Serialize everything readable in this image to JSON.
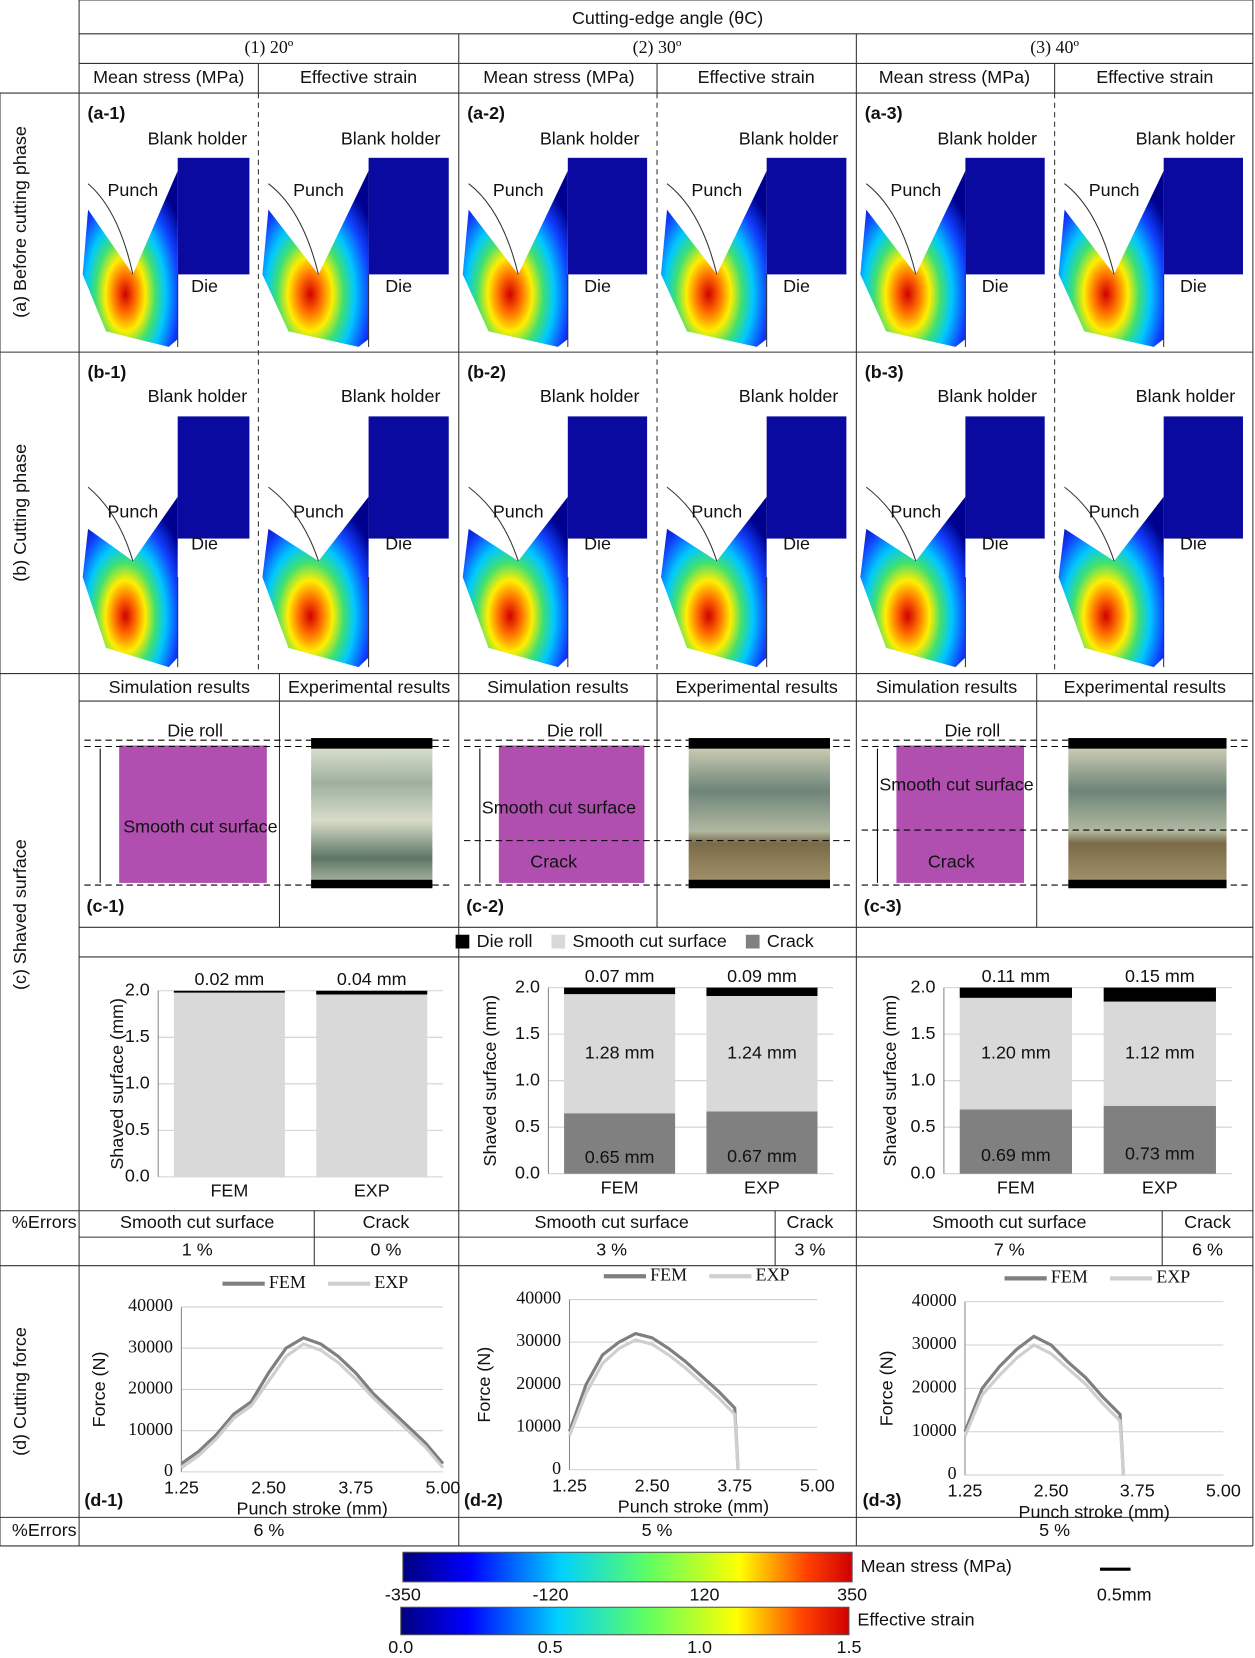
{
  "header": {
    "title": "Cutting-edge angle (θC)",
    "columns": [
      "(1) 20º",
      "(2) 30º",
      "(3) 40º"
    ],
    "subheaders": [
      "Mean stress (MPa)",
      "Effective strain"
    ]
  },
  "row_labels": [
    "(a) Before cutting phase",
    "(b) Cutting phase",
    "(c) Shaved surface",
    "(d) Cutting force"
  ],
  "error_label": "%Errors",
  "panels": [
    "(a-1)",
    "(a-2)",
    "(a-3)",
    "(b-1)",
    "(b-2)",
    "(b-3)"
  ],
  "part_labels": {
    "blank_holder": "Blank holder",
    "punch": "Punch",
    "die": "Die"
  },
  "shaved_surface": {
    "headers": [
      "Simulation results",
      "Experimental results"
    ],
    "labels": {
      "die_roll": "Die roll",
      "smooth": "Smooth cut surface",
      "crack": "Crack"
    },
    "panel_ids": [
      "(c-1)",
      "(c-2)",
      "(c-3)"
    ]
  },
  "errors": [
    {
      "headers": [
        "Smooth cut surface",
        "Crack"
      ],
      "values": [
        "1 %",
        "0 %"
      ]
    },
    {
      "headers": [
        "Smooth cut surface",
        "Crack"
      ],
      "values": [
        "3 %",
        "3 %"
      ]
    },
    {
      "headers": [
        "Smooth cut surface",
        "Crack"
      ],
      "values": [
        "7 %",
        "6 %"
      ]
    }
  ],
  "force_errors": [
    "6 %",
    "5 %",
    "5 %"
  ],
  "colorbars": [
    {
      "label": "Mean stress (MPa)",
      "lim": [
        -350,
        350
      ],
      "ticks": [
        -350,
        -120,
        120,
        350
      ]
    },
    {
      "label": "Effective strain",
      "lim": [
        0,
        1.5
      ],
      "ticks": [
        {
          "value": 0,
          "label": "0.0"
        },
        {
          "value": 0.5,
          "label": "0.5"
        },
        {
          "value": 1,
          "label": "1.0"
        },
        {
          "value": 1.5,
          "label": "1.5"
        }
      ]
    }
  ],
  "scale_bar": "0.5mm",
  "chart_data": [
    {
      "type": "bar",
      "stacked": true,
      "ylabel": "Shaved surface (mm)",
      "categories": [
        "FEM",
        "EXP"
      ],
      "series": [
        {
          "name": "Die roll",
          "color": "#000000",
          "values": [
            0.02,
            0.04
          ],
          "value_labels": [
            "0.02 mm",
            "0.04 mm"
          ]
        },
        {
          "name": "Smooth cut surface",
          "color": "#d9d9d9",
          "values": [
            1.98,
            1.96
          ]
        },
        {
          "name": "Crack",
          "color": "#808080",
          "values": [
            0,
            0
          ]
        }
      ],
      "ylim": [
        0,
        2
      ],
      "yticks": [
        {
          "value": 0,
          "label": "0.0"
        },
        {
          "value": 0.5,
          "label": "0.5"
        },
        {
          "value": 1,
          "label": "1.0"
        },
        {
          "value": 1.5,
          "label": "1.5"
        },
        {
          "value": 2,
          "label": "2.0"
        }
      ],
      "grid": true
    },
    {
      "type": "bar",
      "stacked": true,
      "ylabel": "Shaved surface (mm)",
      "categories": [
        "FEM",
        "EXP"
      ],
      "series": [
        {
          "color": "#000000",
          "values": [
            0.07,
            0.09
          ],
          "value_labels": [
            "0.07 mm",
            "0.09 mm"
          ]
        },
        {
          "color": "#d9d9d9",
          "values": [
            1.28,
            1.24
          ],
          "value_labels": [
            "1.28 mm",
            "1.24 mm"
          ]
        },
        {
          "color": "#808080",
          "values": [
            0.65,
            0.67
          ],
          "value_labels": [
            "0.65 mm",
            "0.67 mm"
          ]
        }
      ],
      "ylim": [
        0,
        2
      ],
      "yticks": [
        {
          "value": 0,
          "label": "0.0"
        },
        {
          "value": 0.5,
          "label": "0.5"
        },
        {
          "value": 1,
          "label": "1.0"
        },
        {
          "value": 1.5,
          "label": "1.5"
        },
        {
          "value": 2,
          "label": "2.0"
        }
      ],
      "grid": true
    },
    {
      "type": "bar",
      "stacked": true,
      "ylabel": "Shaved surface (mm)",
      "categories": [
        "FEM",
        "EXP"
      ],
      "series": [
        {
          "color": "#000000",
          "values": [
            0.11,
            0.15
          ],
          "value_labels": [
            "0.11 mm",
            "0.15 mm"
          ]
        },
        {
          "color": "#d9d9d9",
          "values": [
            1.2,
            1.12
          ],
          "value_labels": [
            "1.20 mm",
            "1.12 mm"
          ]
        },
        {
          "color": "#808080",
          "values": [
            0.69,
            0.73
          ],
          "value_labels": [
            "0.69 mm",
            "0.73 mm"
          ]
        }
      ],
      "ylim": [
        0,
        2
      ],
      "yticks": [
        {
          "value": 0,
          "label": "0.0"
        },
        {
          "value": 0.5,
          "label": "0.5"
        },
        {
          "value": 1,
          "label": "1.0"
        },
        {
          "value": 1.5,
          "label": "1.5"
        },
        {
          "value": 2,
          "label": "2.0"
        }
      ],
      "grid": true
    },
    {
      "type": "line",
      "ylabel": "Force (N)",
      "xlabel": "Punch stroke (mm)",
      "panel_label": "(d-1)",
      "x": [
        1.25,
        1.5,
        1.75,
        2.0,
        2.25,
        2.5,
        2.75,
        3.0,
        3.25,
        3.5,
        3.75,
        4.0,
        4.25,
        4.5,
        4.75,
        5.0
      ],
      "series": [
        {
          "name": "FEM",
          "color": "#7f7f7f",
          "values": [
            2000,
            5000,
            9000,
            14000,
            17000,
            24000,
            30000,
            32500,
            31000,
            28000,
            24000,
            19000,
            15000,
            11000,
            7000,
            2000
          ]
        },
        {
          "name": "EXP",
          "color": "#cfcfcf",
          "values": [
            1000,
            4000,
            8000,
            13000,
            16000,
            22000,
            28000,
            31000,
            29500,
            26500,
            22500,
            18000,
            14000,
            10000,
            6000,
            1000
          ]
        }
      ],
      "xlim": [
        1.25,
        5
      ],
      "xticks": [
        {
          "value": 1.25,
          "label": "1.25"
        },
        {
          "value": 2.5,
          "label": "2.50"
        },
        {
          "value": 3.75,
          "label": "3.75"
        },
        {
          "value": 5,
          "label": "5.00"
        }
      ],
      "ylim": [
        0,
        40000
      ],
      "yticks": [
        0,
        10000,
        20000,
        30000,
        40000
      ],
      "grid": true
    },
    {
      "type": "line",
      "ylabel": "Force (N)",
      "xlabel": "Punch stroke (mm)",
      "panel_label": "(d-2)",
      "x": [
        1.25,
        1.5,
        1.75,
        2.0,
        2.25,
        2.5,
        2.75,
        3.0,
        3.25,
        3.5,
        3.75,
        3.8
      ],
      "series": [
        {
          "name": "FEM",
          "color": "#7f7f7f",
          "values": [
            9000,
            20000,
            27000,
            30000,
            32000,
            31000,
            28500,
            25500,
            22000,
            18500,
            14500,
            0
          ]
        },
        {
          "name": "EXP",
          "color": "#cfcfcf",
          "values": [
            8000,
            18000,
            25000,
            28500,
            30500,
            29500,
            27000,
            24000,
            20500,
            17000,
            13000,
            0
          ]
        }
      ],
      "xlim": [
        1.25,
        5
      ],
      "xticks": [
        {
          "value": 1.25,
          "label": "1.25"
        },
        {
          "value": 2.5,
          "label": "2.50"
        },
        {
          "value": 3.75,
          "label": "3.75"
        },
        {
          "value": 5,
          "label": "5.00"
        }
      ],
      "ylim": [
        0,
        40000
      ],
      "yticks": [
        0,
        10000,
        20000,
        30000,
        40000
      ],
      "grid": true
    },
    {
      "type": "line",
      "ylabel": "Force (N)",
      "xlabel": "Punch stroke (mm)",
      "panel_label": "(d-3)",
      "x": [
        1.25,
        1.5,
        1.75,
        2.0,
        2.25,
        2.5,
        2.75,
        3.0,
        3.25,
        3.5,
        3.55
      ],
      "series": [
        {
          "name": "FEM",
          "color": "#7f7f7f",
          "values": [
            10000,
            20000,
            25000,
            29000,
            32000,
            30000,
            26000,
            22500,
            18000,
            14000,
            0
          ]
        },
        {
          "name": "EXP",
          "color": "#cfcfcf",
          "values": [
            9000,
            18500,
            23000,
            27000,
            30000,
            28000,
            24500,
            21000,
            16500,
            12500,
            0
          ]
        }
      ],
      "xlim": [
        1.25,
        5
      ],
      "xticks": [
        {
          "value": 1.25,
          "label": "1.25"
        },
        {
          "value": 2.5,
          "label": "2.50"
        },
        {
          "value": 3.75,
          "label": "3.75"
        },
        {
          "value": 5,
          "label": "5.00"
        }
      ],
      "ylim": [
        0,
        40000
      ],
      "yticks": [
        0,
        10000,
        20000,
        30000,
        40000
      ],
      "grid": true
    }
  ]
}
